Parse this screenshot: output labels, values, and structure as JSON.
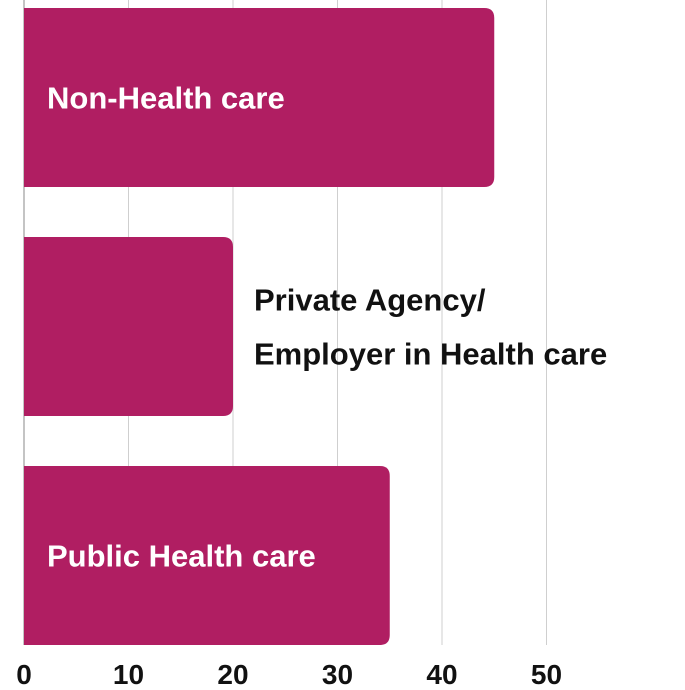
{
  "chart_data": {
    "type": "bar",
    "orientation": "horizontal",
    "categories": [
      "Non-Health care",
      "Private Agency/\nEmployer in Health care",
      "Public Health care"
    ],
    "values": [
      45,
      20,
      35
    ],
    "xlim": [
      0,
      50
    ],
    "x_ticks": [
      "0",
      "10",
      "20",
      "30",
      "40",
      "50"
    ],
    "grid": "vertical",
    "bar_color": "#b01e62",
    "title": "",
    "xlabel": "",
    "ylabel": ""
  }
}
